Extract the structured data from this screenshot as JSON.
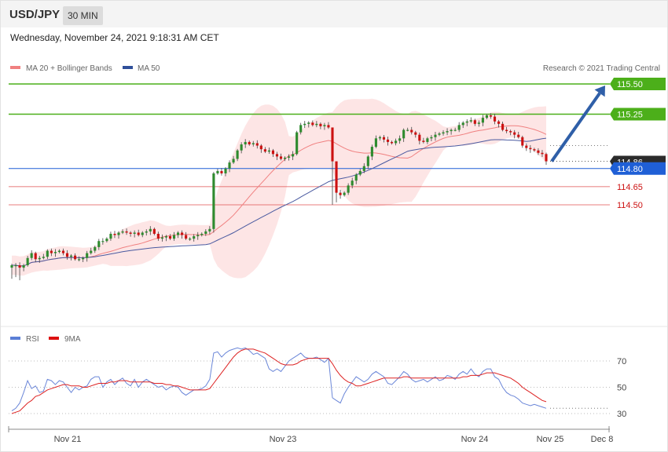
{
  "header": {
    "pair": "USD/JPY",
    "timeframe": "30 MIN"
  },
  "datetime": "Wednesday, November 24, 2021 9:18:31 AM CET",
  "legend": {
    "ma20": "MA 20 + Bollinger Bands",
    "ma50": "MA 50"
  },
  "copyright": "Research © 2021 Trading Central",
  "rsi_legend": {
    "rsi": "RSI",
    "ma9": "9MA"
  },
  "colors": {
    "resistance": "#4caf1a",
    "support": "#e05050",
    "current": "#1f5fd6",
    "last": "#2b2b2b",
    "ma50": "#4a5aa0",
    "ma20": "#f08080",
    "bands": "#fde0e0",
    "bull": "#2e8b2e",
    "bear": "#cc1111",
    "arrow": "#2f5fa8",
    "rsi": "#6a86d8",
    "rsi_ma": "#dd2222"
  },
  "chart_data": [
    {
      "type": "line",
      "title": "",
      "description": "USD/JPY 30-minute candlestick with MA20 + Bollinger Bands and MA50",
      "x_ticks": [
        "Nov 21",
        "Nov 23",
        "Nov 24",
        "Nov 25",
        "Dec 8"
      ],
      "ylim": [
        113.75,
        115.64
      ],
      "levels": [
        {
          "label": "115.50",
          "value": 115.5,
          "kind": "resistance"
        },
        {
          "label": "115.25",
          "value": 115.25,
          "kind": "resistance"
        },
        {
          "label": "114.86",
          "value": 114.86,
          "kind": "last"
        },
        {
          "label": "114.80",
          "value": 114.8,
          "kind": "current"
        },
        {
          "label": "114.65",
          "value": 114.65,
          "kind": "support"
        },
        {
          "label": "114.50",
          "value": 114.5,
          "kind": "support"
        }
      ],
      "close": [
        114.0,
        114.0,
        113.98,
        114.0,
        114.06,
        114.1,
        114.05,
        114.06,
        114.07,
        114.12,
        114.1,
        114.11,
        114.12,
        114.1,
        114.07,
        114.08,
        114.05,
        114.05,
        114.06,
        114.1,
        114.12,
        114.15,
        114.2,
        114.2,
        114.22,
        114.26,
        114.25,
        114.27,
        114.28,
        114.27,
        114.26,
        114.27,
        114.25,
        114.27,
        114.28,
        114.3,
        114.26,
        114.22,
        114.23,
        114.24,
        114.22,
        114.25,
        114.27,
        114.25,
        114.22,
        114.22,
        114.24,
        114.25,
        114.26,
        114.28,
        114.3,
        114.76,
        114.78,
        114.76,
        114.8,
        114.85,
        114.88,
        114.95,
        115.0,
        115.02,
        115.0,
        115.01,
        114.99,
        114.96,
        114.94,
        114.95,
        114.92,
        114.9,
        114.88,
        114.89,
        114.9,
        114.92,
        115.1,
        115.16,
        115.17,
        115.18,
        115.16,
        115.17,
        115.15,
        115.16,
        115.14,
        114.86,
        114.6,
        114.58,
        114.6,
        114.66,
        114.7,
        114.75,
        114.78,
        114.82,
        114.9,
        114.98,
        115.05,
        115.06,
        115.04,
        115.02,
        115.01,
        115.03,
        115.05,
        115.12,
        115.12,
        115.1,
        115.08,
        115.03,
        115.02,
        115.05,
        115.06,
        115.08,
        115.09,
        115.1,
        115.11,
        115.12,
        115.12,
        115.16,
        115.18,
        115.19,
        115.2,
        115.17,
        115.18,
        115.22,
        115.24,
        115.23,
        115.19,
        115.17,
        115.12,
        115.11,
        115.1,
        115.08,
        115.06,
        114.99,
        114.97,
        114.96,
        114.95,
        114.93,
        114.92,
        114.86
      ]
    },
    {
      "type": "line",
      "title": "",
      "description": "RSI with 9-period moving average",
      "yticks": [
        30,
        50,
        70
      ],
      "ylim": [
        20,
        85
      ],
      "series": [
        {
          "name": "RSI",
          "values": [
            32,
            34,
            38,
            46,
            55,
            49,
            51,
            46,
            47,
            56,
            55,
            52,
            55,
            54,
            50,
            46,
            50,
            48,
            50,
            51,
            56,
            58,
            58,
            50,
            54,
            56,
            52,
            55,
            57,
            53,
            51,
            56,
            50,
            54,
            56,
            54,
            52,
            50,
            51,
            48,
            50,
            51,
            50,
            46,
            44,
            46,
            48,
            48,
            49,
            51,
            56,
            76,
            77,
            73,
            76,
            78,
            79,
            80,
            79,
            80,
            78,
            75,
            76,
            74,
            72,
            64,
            62,
            64,
            62,
            66,
            70,
            72,
            74,
            76,
            73,
            72,
            72,
            73,
            71,
            69,
            72,
            42,
            40,
            38,
            45,
            50,
            54,
            58,
            56,
            54,
            56,
            60,
            62,
            60,
            58,
            53,
            52,
            55,
            58,
            62,
            60,
            56,
            54,
            55,
            56,
            54,
            56,
            58,
            55,
            56,
            59,
            58,
            56,
            60,
            62,
            60,
            64,
            60,
            58,
            62,
            64,
            64,
            58,
            56,
            50,
            46,
            44,
            43,
            41,
            38,
            37,
            36,
            37,
            36,
            35,
            34
          ]
        },
        {
          "name": "9MA",
          "values": [
            30,
            31,
            32,
            35,
            38,
            40,
            43,
            44,
            46,
            48,
            49,
            50,
            51,
            52,
            52,
            51,
            51,
            51,
            50,
            50,
            51,
            52,
            53,
            53,
            53,
            54,
            54,
            55,
            55,
            55,
            54,
            54,
            54,
            54,
            54,
            54,
            53,
            53,
            53,
            52,
            52,
            51,
            51,
            50,
            49,
            48,
            48,
            48,
            48,
            48,
            49,
            53,
            57,
            61,
            65,
            69,
            73,
            76,
            78,
            79,
            79,
            79,
            78,
            77,
            76,
            74,
            72,
            70,
            68,
            67,
            67,
            67,
            68,
            70,
            71,
            72,
            72,
            72,
            72,
            72,
            72,
            68,
            63,
            59,
            56,
            54,
            53,
            51,
            51,
            52,
            53,
            54,
            55,
            56,
            57,
            57,
            57,
            57,
            57,
            58,
            58,
            57,
            57,
            57,
            57,
            57,
            57,
            57,
            57,
            57,
            57,
            57,
            57,
            57,
            58,
            58,
            59,
            59,
            59,
            60,
            61,
            61,
            61,
            60,
            59,
            58,
            57,
            55,
            53,
            50,
            48,
            46,
            44,
            42,
            40,
            39
          ]
        }
      ]
    }
  ]
}
